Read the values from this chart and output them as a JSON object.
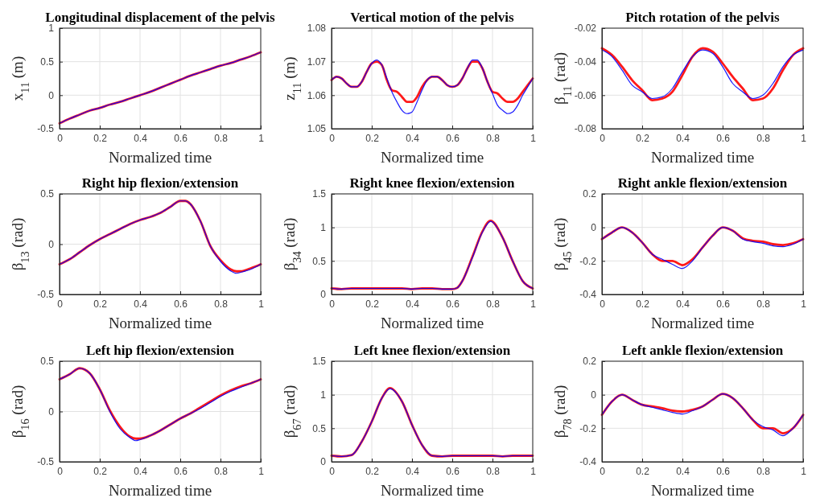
{
  "chart_data": [
    {
      "type": "line",
      "title": "Longitudinal displacement of the pelvis",
      "xlabel": "Normalized time",
      "ylabel": "x$_{11}$ (m)",
      "x": [
        0,
        0.05,
        0.1,
        0.15,
        0.2,
        0.25,
        0.3,
        0.35,
        0.4,
        0.45,
        0.5,
        0.55,
        0.6,
        0.65,
        0.7,
        0.75,
        0.8,
        0.85,
        0.9,
        0.95,
        1
      ],
      "xlim": [
        0,
        1
      ],
      "xticks": [
        0,
        0.2,
        0.4,
        0.6,
        0.8,
        1
      ],
      "ylim": [
        -0.5,
        1
      ],
      "yticks": [
        -0.5,
        0,
        0.5,
        1
      ],
      "grid": true,
      "series": [
        {
          "color": "#ff0000",
          "values": [
            -0.42,
            -0.35,
            -0.29,
            -0.23,
            -0.19,
            -0.14,
            -0.1,
            -0.05,
            0,
            0.05,
            0.11,
            0.17,
            0.23,
            0.29,
            0.34,
            0.39,
            0.44,
            0.48,
            0.53,
            0.58,
            0.64
          ]
        },
        {
          "color": "#0000ff",
          "values": [
            -0.42,
            -0.35,
            -0.29,
            -0.23,
            -0.19,
            -0.14,
            -0.1,
            -0.05,
            0,
            0.05,
            0.11,
            0.17,
            0.23,
            0.29,
            0.34,
            0.39,
            0.44,
            0.48,
            0.53,
            0.58,
            0.64
          ]
        }
      ]
    },
    {
      "type": "line",
      "title": "Vertical motion of the pelvis",
      "xlabel": "Normalized time",
      "ylabel": "z$_{11}$ (m)",
      "x": [
        0,
        0.025,
        0.05,
        0.075,
        0.1,
        0.125,
        0.15,
        0.175,
        0.2,
        0.225,
        0.25,
        0.275,
        0.3,
        0.325,
        0.35,
        0.375,
        0.4,
        0.425,
        0.45,
        0.475,
        0.5,
        0.525,
        0.55,
        0.575,
        0.6,
        0.625,
        0.65,
        0.675,
        0.7,
        0.725,
        0.75,
        0.775,
        0.8,
        0.825,
        0.85,
        0.875,
        0.9,
        0.925,
        0.95,
        0.975,
        1
      ],
      "xlim": [
        0,
        1
      ],
      "xticks": [
        0,
        0.2,
        0.4,
        0.6,
        0.8,
        1
      ],
      "ylim": [
        1.05,
        1.08
      ],
      "yticks": [
        1.05,
        1.06,
        1.07,
        1.08
      ],
      "grid": true,
      "series": [
        {
          "color": "#ff0000",
          "values": [
            1.0645,
            1.0655,
            1.065,
            1.0635,
            1.0625,
            1.0625,
            1.064,
            1.067,
            1.0695,
            1.07,
            1.069,
            1.0645,
            1.0615,
            1.061,
            1.0595,
            1.058,
            1.058,
            1.0595,
            1.0625,
            1.0645,
            1.0655,
            1.0655,
            1.0645,
            1.063,
            1.0625,
            1.063,
            1.065,
            1.068,
            1.07,
            1.07,
            1.068,
            1.064,
            1.061,
            1.0605,
            1.059,
            1.058,
            1.058,
            1.059,
            1.061,
            1.063,
            1.065
          ]
        },
        {
          "color": "#0000ff",
          "values": [
            1.0645,
            1.0655,
            1.065,
            1.0635,
            1.0625,
            1.0625,
            1.064,
            1.067,
            1.0695,
            1.0705,
            1.069,
            1.065,
            1.061,
            1.058,
            1.0555,
            1.0545,
            1.055,
            1.058,
            1.0615,
            1.0645,
            1.0655,
            1.0655,
            1.0645,
            1.063,
            1.0625,
            1.063,
            1.065,
            1.068,
            1.0705,
            1.0705,
            1.068,
            1.064,
            1.0605,
            1.057,
            1.0555,
            1.0545,
            1.055,
            1.057,
            1.06,
            1.0625,
            1.065
          ]
        }
      ]
    },
    {
      "type": "line",
      "title": "Pitch rotation of the pelvis",
      "xlabel": "Normalized time",
      "ylabel": "β$_{11}$ (rad)",
      "x": [
        0,
        0.05,
        0.1,
        0.15,
        0.2,
        0.25,
        0.3,
        0.35,
        0.4,
        0.45,
        0.5,
        0.55,
        0.6,
        0.65,
        0.7,
        0.75,
        0.8,
        0.85,
        0.9,
        0.95,
        1
      ],
      "xlim": [
        0,
        1
      ],
      "xticks": [
        0,
        0.2,
        0.4,
        0.6,
        0.8,
        1
      ],
      "ylim": [
        -0.08,
        -0.02
      ],
      "yticks": [
        -0.08,
        -0.06,
        -0.04,
        -0.02
      ],
      "grid": true,
      "series": [
        {
          "color": "#ff0000",
          "values": [
            -0.032,
            -0.036,
            -0.043,
            -0.051,
            -0.057,
            -0.063,
            -0.062,
            -0.058,
            -0.048,
            -0.037,
            -0.032,
            -0.034,
            -0.041,
            -0.049,
            -0.056,
            -0.063,
            -0.062,
            -0.056,
            -0.045,
            -0.036,
            -0.032
          ]
        },
        {
          "color": "#0000ff",
          "values": [
            -0.033,
            -0.037,
            -0.045,
            -0.054,
            -0.058,
            -0.062,
            -0.061,
            -0.056,
            -0.046,
            -0.037,
            -0.033,
            -0.035,
            -0.043,
            -0.053,
            -0.058,
            -0.062,
            -0.06,
            -0.053,
            -0.043,
            -0.036,
            -0.033
          ]
        }
      ]
    },
    {
      "type": "line",
      "title": "Right hip flexion/extension",
      "xlabel": "Normalized time",
      "ylabel": "β$_{13}$ (rad)",
      "x": [
        0,
        0.05,
        0.1,
        0.15,
        0.2,
        0.25,
        0.3,
        0.35,
        0.4,
        0.45,
        0.5,
        0.55,
        0.6,
        0.625,
        0.65,
        0.7,
        0.75,
        0.8,
        0.85,
        0.88,
        0.9,
        0.95,
        1
      ],
      "xlim": [
        0,
        1
      ],
      "xticks": [
        0,
        0.2,
        0.4,
        0.6,
        0.8,
        1
      ],
      "ylim": [
        -0.5,
        0.5
      ],
      "yticks": [
        -0.5,
        0,
        0.5
      ],
      "grid": true,
      "series": [
        {
          "color": "#ff0000",
          "values": [
            -0.2,
            -0.15,
            -0.08,
            -0.01,
            0.05,
            0.1,
            0.15,
            0.2,
            0.24,
            0.27,
            0.31,
            0.37,
            0.43,
            0.43,
            0.4,
            0.23,
            -0.02,
            -0.16,
            -0.25,
            -0.27,
            -0.27,
            -0.24,
            -0.2
          ]
        },
        {
          "color": "#0000ff",
          "values": [
            -0.2,
            -0.15,
            -0.08,
            -0.01,
            0.05,
            0.1,
            0.15,
            0.2,
            0.24,
            0.27,
            0.31,
            0.37,
            0.43,
            0.43,
            0.4,
            0.23,
            -0.02,
            -0.17,
            -0.265,
            -0.29,
            -0.28,
            -0.25,
            -0.2
          ]
        }
      ]
    },
    {
      "type": "line",
      "title": "Right knee flexion/extension",
      "xlabel": "Normalized time",
      "ylabel": "β$_{34}$ (rad)",
      "x": [
        0,
        0.05,
        0.1,
        0.15,
        0.2,
        0.25,
        0.3,
        0.35,
        0.4,
        0.45,
        0.5,
        0.55,
        0.6,
        0.625,
        0.65,
        0.7,
        0.75,
        0.79,
        0.85,
        0.9,
        0.95,
        1
      ],
      "xlim": [
        0,
        1
      ],
      "xticks": [
        0,
        0.2,
        0.4,
        0.6,
        0.8,
        1
      ],
      "ylim": [
        0,
        1.5
      ],
      "yticks": [
        0,
        0.5,
        1,
        1.5
      ],
      "grid": true,
      "series": [
        {
          "color": "#ff0000",
          "values": [
            0.09,
            0.08,
            0.09,
            0.09,
            0.09,
            0.09,
            0.09,
            0.09,
            0.08,
            0.09,
            0.09,
            0.08,
            0.08,
            0.1,
            0.2,
            0.56,
            0.94,
            1.1,
            0.85,
            0.5,
            0.2,
            0.09
          ]
        },
        {
          "color": "#0000ff",
          "values": [
            0.09,
            0.08,
            0.09,
            0.09,
            0.09,
            0.09,
            0.09,
            0.09,
            0.08,
            0.09,
            0.09,
            0.08,
            0.08,
            0.1,
            0.2,
            0.55,
            0.93,
            1.09,
            0.85,
            0.5,
            0.2,
            0.09
          ]
        }
      ]
    },
    {
      "type": "line",
      "title": "Right ankle flexion/extension",
      "xlabel": "Normalized time",
      "ylabel": "β$_{45}$ (rad)",
      "x": [
        0,
        0.05,
        0.1,
        0.15,
        0.2,
        0.25,
        0.3,
        0.35,
        0.4,
        0.45,
        0.5,
        0.55,
        0.6,
        0.65,
        0.7,
        0.75,
        0.8,
        0.85,
        0.9,
        0.95,
        1
      ],
      "xlim": [
        0,
        1
      ],
      "xticks": [
        0,
        0.2,
        0.4,
        0.6,
        0.8,
        1
      ],
      "ylim": [
        -0.4,
        0.2
      ],
      "yticks": [
        -0.4,
        -0.2,
        0,
        0.2
      ],
      "grid": true,
      "series": [
        {
          "color": "#ff0000",
          "values": [
            -0.07,
            -0.03,
            0,
            -0.03,
            -0.09,
            -0.16,
            -0.2,
            -0.2,
            -0.225,
            -0.19,
            -0.12,
            -0.05,
            0,
            -0.02,
            -0.065,
            -0.08,
            -0.085,
            -0.1,
            -0.105,
            -0.095,
            -0.07
          ]
        },
        {
          "color": "#0000ff",
          "values": [
            -0.07,
            -0.03,
            0,
            -0.03,
            -0.09,
            -0.16,
            -0.19,
            -0.22,
            -0.245,
            -0.2,
            -0.12,
            -0.05,
            0,
            -0.02,
            -0.07,
            -0.085,
            -0.095,
            -0.11,
            -0.115,
            -0.1,
            -0.07
          ]
        }
      ]
    },
    {
      "type": "line",
      "title": "Left hip flexion/extension",
      "xlabel": "Normalized time",
      "ylabel": "β$_{16}$ (rad)",
      "x": [
        0,
        0.05,
        0.1,
        0.15,
        0.2,
        0.25,
        0.3,
        0.35,
        0.38,
        0.4,
        0.45,
        0.5,
        0.55,
        0.6,
        0.65,
        0.7,
        0.75,
        0.8,
        0.85,
        0.9,
        0.95,
        1
      ],
      "xlim": [
        0,
        1
      ],
      "xticks": [
        0,
        0.2,
        0.4,
        0.6,
        0.8,
        1
      ],
      "ylim": [
        -0.5,
        0.5
      ],
      "yticks": [
        -0.5,
        0,
        0.5
      ],
      "grid": true,
      "series": [
        {
          "color": "#ff0000",
          "values": [
            0.32,
            0.37,
            0.43,
            0.38,
            0.22,
            0.01,
            -0.15,
            -0.25,
            -0.27,
            -0.27,
            -0.24,
            -0.19,
            -0.13,
            -0.07,
            -0.02,
            0.04,
            0.1,
            0.16,
            0.21,
            0.25,
            0.28,
            0.32
          ]
        },
        {
          "color": "#0000ff",
          "values": [
            0.32,
            0.37,
            0.43,
            0.38,
            0.22,
            0,
            -0.17,
            -0.26,
            -0.29,
            -0.28,
            -0.24,
            -0.19,
            -0.13,
            -0.07,
            -0.02,
            0.03,
            0.09,
            0.15,
            0.2,
            0.24,
            0.28,
            0.32
          ]
        }
      ]
    },
    {
      "type": "line",
      "title": "Left knee flexion/extension",
      "xlabel": "Normalized time",
      "ylabel": "β$_{67}$ (rad)",
      "x": [
        0,
        0.05,
        0.1,
        0.15,
        0.2,
        0.25,
        0.29,
        0.35,
        0.4,
        0.45,
        0.5,
        0.55,
        0.6,
        0.65,
        0.7,
        0.75,
        0.8,
        0.85,
        0.9,
        0.95,
        1
      ],
      "xlim": [
        0,
        1
      ],
      "xticks": [
        0,
        0.2,
        0.4,
        0.6,
        0.8,
        1
      ],
      "ylim": [
        0,
        1.5
      ],
      "yticks": [
        0,
        0.5,
        1,
        1.5
      ],
      "grid": true,
      "series": [
        {
          "color": "#ff0000",
          "values": [
            0.09,
            0.08,
            0.1,
            0.3,
            0.6,
            0.95,
            1.1,
            0.9,
            0.55,
            0.25,
            0.09,
            0.08,
            0.09,
            0.09,
            0.09,
            0.09,
            0.09,
            0.08,
            0.09,
            0.09,
            0.09
          ]
        },
        {
          "color": "#0000ff",
          "values": [
            0.09,
            0.08,
            0.1,
            0.3,
            0.6,
            0.95,
            1.09,
            0.9,
            0.55,
            0.25,
            0.09,
            0.08,
            0.09,
            0.09,
            0.09,
            0.09,
            0.09,
            0.08,
            0.09,
            0.09,
            0.09
          ]
        }
      ]
    },
    {
      "type": "line",
      "title": "Left ankle flexion/extension",
      "xlabel": "Normalized time",
      "ylabel": "β$_{78}$ (rad)",
      "x": [
        0,
        0.05,
        0.1,
        0.15,
        0.2,
        0.25,
        0.3,
        0.35,
        0.4,
        0.45,
        0.5,
        0.55,
        0.6,
        0.65,
        0.7,
        0.75,
        0.8,
        0.85,
        0.9,
        0.95,
        1
      ],
      "xlim": [
        0,
        1
      ],
      "xticks": [
        0,
        0.2,
        0.4,
        0.6,
        0.8,
        1
      ],
      "ylim": [
        -0.4,
        0.2
      ],
      "yticks": [
        -0.4,
        -0.2,
        0,
        0.2
      ],
      "grid": true,
      "series": [
        {
          "color": "#ff0000",
          "values": [
            -0.12,
            -0.04,
            0,
            -0.03,
            -0.06,
            -0.07,
            -0.08,
            -0.095,
            -0.1,
            -0.09,
            -0.07,
            -0.03,
            0.005,
            -0.02,
            -0.08,
            -0.15,
            -0.2,
            -0.2,
            -0.23,
            -0.2,
            -0.12
          ]
        },
        {
          "color": "#0000ff",
          "values": [
            -0.12,
            -0.04,
            0,
            -0.03,
            -0.06,
            -0.075,
            -0.09,
            -0.105,
            -0.115,
            -0.095,
            -0.07,
            -0.03,
            0.005,
            -0.02,
            -0.08,
            -0.15,
            -0.19,
            -0.21,
            -0.245,
            -0.2,
            -0.12
          ]
        }
      ]
    }
  ]
}
